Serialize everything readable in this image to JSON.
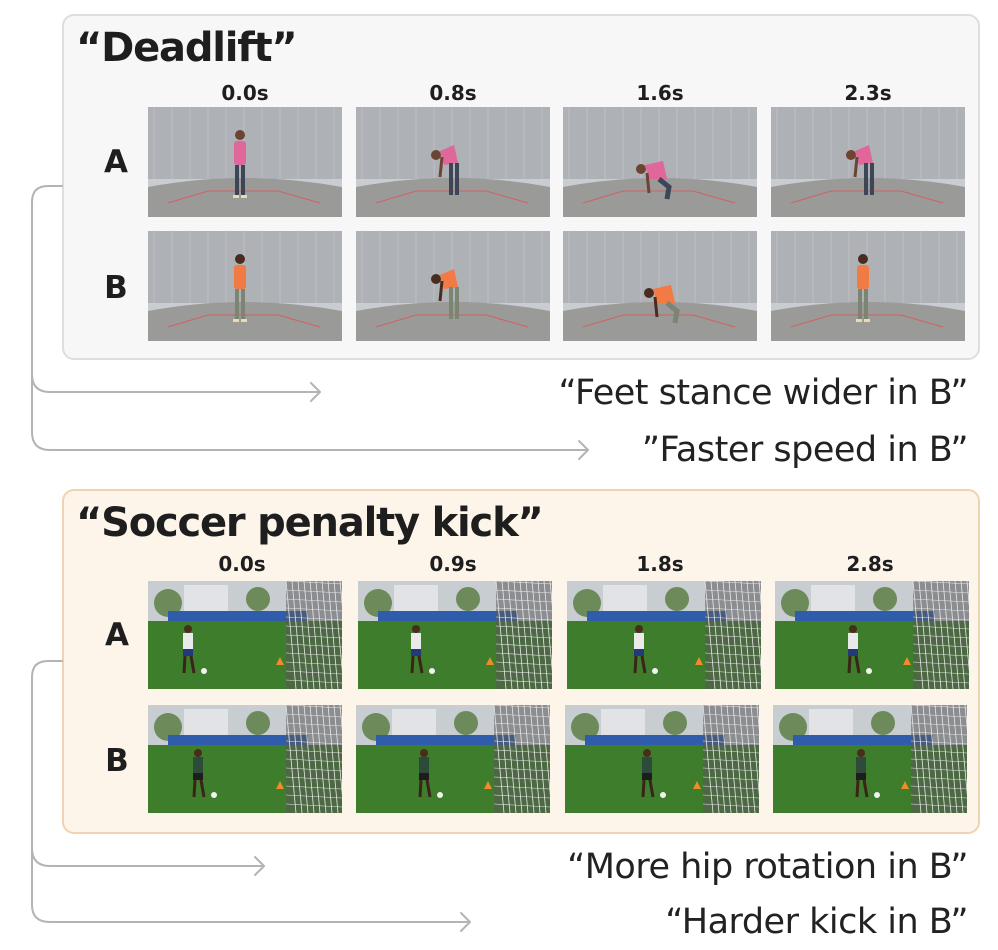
{
  "deadlift": {
    "title": "“Deadlift”",
    "timestamps": [
      "0.0s",
      "0.8s",
      "1.6s",
      "2.3s"
    ],
    "rows": [
      {
        "label": "A",
        "poses": [
          "stand",
          "bend",
          "squat",
          "bend"
        ]
      },
      {
        "label": "B",
        "poses": [
          "stand",
          "bend",
          "squat",
          "stand"
        ]
      }
    ],
    "callouts": [
      "“Feet stance wider in B”",
      "”Faster speed in B”"
    ]
  },
  "soccer": {
    "title": "“Soccer penalty kick”",
    "timestamps": [
      "0.0s",
      "0.9s",
      "1.8s",
      "2.8s"
    ],
    "rows": [
      {
        "label": "A"
      },
      {
        "label": "B"
      }
    ],
    "callouts": [
      "“More hip rotation in B”",
      "“Harder kick in B”"
    ]
  },
  "colors": {
    "deadlift_panel_bg": "#f7f7f7",
    "deadlift_panel_border": "#dedede",
    "soccer_panel_bg": "#fdf4ea",
    "soccer_panel_border": "#f0d3b0",
    "connector": "#b4b4b4",
    "shirt_a": "#e0679a",
    "shirt_b": "#f27a45",
    "grass": "#3d7d2b",
    "fence": "#dfe3e8"
  }
}
